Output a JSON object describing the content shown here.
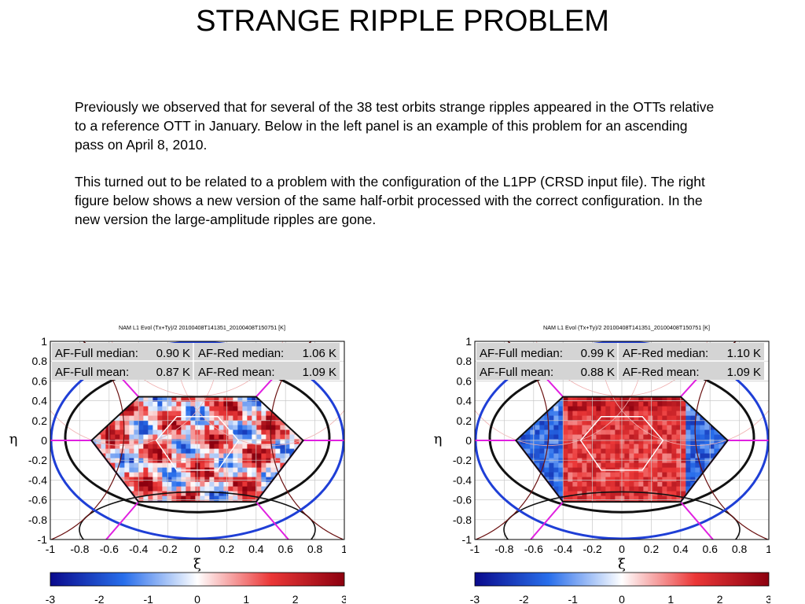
{
  "slide": {
    "title": "STRANGE RIPPLE PROBLEM",
    "paragraphs": [
      "Previously we observed that for several of the 38 test orbits strange ripples appeared in the OTTs relative to a reference OTT in January. Below in the left panel is an example of this problem for an ascending pass on April 8, 2010.",
      "This turned out to be related to a problem with the configuration of the L1PP (CRSD input file). The right figure below shows a new version of the same half-orbit processed with the correct configuration. In the new version the large-amplitude ripples are gone."
    ]
  },
  "colors": {
    "hexagon_outline": "#111111",
    "fov_ellipse": "#1f3fd6",
    "alias_lines": "#e020e0",
    "grid": "#c8c8c8",
    "stats_box": "#d4d4d4"
  },
  "figures": [
    {
      "plot_title": "NAM L1 Evol (Tx+Ty)/2 20100408T141351_20100408T150751 [K]",
      "ylabel": "η",
      "xlabel": "ξ",
      "x_ticks": [
        "-1",
        "-0.8",
        "-0.6",
        "-0.4",
        "-0.2",
        "0",
        "0.2",
        "0.4",
        "0.6",
        "0.8",
        "1"
      ],
      "y_ticks": [
        "1",
        "0.8",
        "0.6",
        "0.4",
        "0.2",
        "0",
        "-0.2",
        "-0.4",
        "-0.6",
        "-0.8",
        "-1"
      ],
      "colorbar_ticks": [
        "-3",
        "-2",
        "-1",
        "0",
        "1",
        "2",
        "3"
      ],
      "stats": [
        {
          "label": "AF-Full median:",
          "value": "0.90 K",
          "label2": "AF-Red median:",
          "value2": "1.06 K"
        },
        {
          "label": "AF-Full mean:",
          "value": "0.87 K",
          "label2": "AF-Red mean:",
          "value2": "1.09 K"
        }
      ],
      "chart_data": {
        "type": "heatmap",
        "title": "NAM L1 Evol (Tx+Ty)/2 20100408T141351_20100408T150751 [K]",
        "xlabel": "ξ",
        "ylabel": "η",
        "xlim": [
          -1,
          1
        ],
        "ylim": [
          -1,
          1
        ],
        "colorbar_range": [
          -3,
          3
        ],
        "grid": true,
        "pattern": "ripples",
        "seed": 7
      }
    },
    {
      "plot_title": "NAM L1 Evol (Tx+Ty)/2 20100408T141351_20100408T150751 [K]",
      "ylabel": "η",
      "xlabel": "ξ",
      "x_ticks": [
        "-1",
        "-0.8",
        "-0.6",
        "-0.4",
        "-0.2",
        "0",
        "0.2",
        "0.4",
        "0.6",
        "0.8",
        "1"
      ],
      "y_ticks": [
        "1",
        "0.8",
        "0.6",
        "0.4",
        "0.2",
        "0",
        "-0.2",
        "-0.4",
        "-0.6",
        "-0.8",
        "-1"
      ],
      "colorbar_ticks": [
        "-3",
        "-2",
        "-1",
        "0",
        "1",
        "2",
        "3"
      ],
      "stats": [
        {
          "label": "AF-Full median:",
          "value": "0.99 K",
          "label2": "AF-Red median:",
          "value2": "1.10 K"
        },
        {
          "label": "AF-Full mean:",
          "value": "0.88 K",
          "label2": "AF-Red mean:",
          "value2": "1.09 K"
        }
      ],
      "chart_data": {
        "type": "heatmap",
        "title": "NAM L1 Evol (Tx+Ty)/2 20100408T141351_20100408T150751 [K]",
        "xlabel": "ξ",
        "ylabel": "η",
        "xlim": [
          -1,
          1
        ],
        "ylim": [
          -1,
          1
        ],
        "colorbar_range": [
          -3,
          3
        ],
        "grid": true,
        "pattern": "smooth",
        "seed": 11
      }
    }
  ]
}
